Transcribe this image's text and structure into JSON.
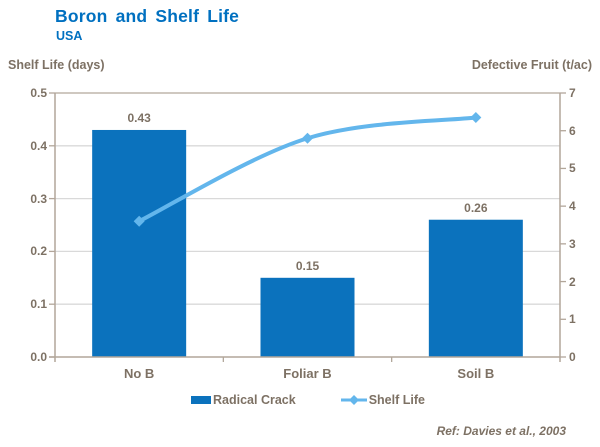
{
  "header": {
    "title": "Boron and Shelf Life",
    "subtitle": "USA"
  },
  "chart_data": {
    "type": "bar",
    "subtype": "bar-and-line-combo",
    "categories": [
      "No B",
      "Foliar B",
      "Soil B"
    ],
    "series": [
      {
        "name": "Radical Crack",
        "type": "bar",
        "axis": "left",
        "values": [
          0.43,
          0.15,
          0.26
        ],
        "data_labels": [
          "0.43",
          "0.15",
          "0.26"
        ],
        "color": "#0b72bd"
      },
      {
        "name": "Shelf Life",
        "type": "line",
        "axis": "right",
        "values": [
          3.6,
          5.8,
          6.35
        ],
        "marker": "diamond",
        "color": "#63b6ec"
      }
    ],
    "left_axis": {
      "title": "Shelf Life (days)",
      "min": 0.0,
      "max": 0.5,
      "ticks": [
        "0.5",
        "0.4",
        "0.3",
        "0.2",
        "0.1",
        "0.0"
      ]
    },
    "right_axis": {
      "title": "Defective Fruit (t/ac)",
      "min": 0,
      "max": 7,
      "ticks": [
        "7",
        "6",
        "5",
        "4",
        "3",
        "2",
        "1",
        "0"
      ]
    },
    "grid": true,
    "legend_position": "bottom"
  },
  "footer": {
    "reference": "Ref: Davies et al., 2003"
  },
  "colors": {
    "title_blue": "#0070c0",
    "bar_blue": "#0b72bd",
    "line_blue": "#63b6ec",
    "text_brown": "#7d7164",
    "axis_line": "#b2a69a",
    "gridline": "#d9d9d9",
    "background": "#ffffff"
  }
}
